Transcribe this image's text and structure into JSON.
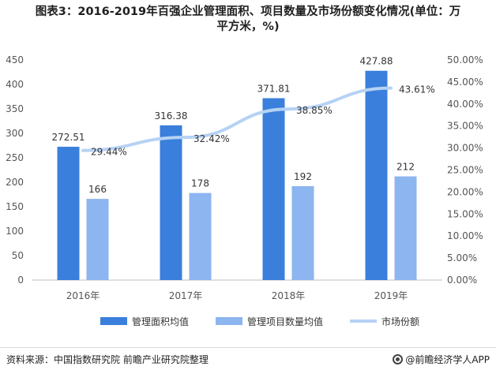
{
  "title": {
    "line1": "图表3：2016-2019年百强企业管理面积、项目数量及市场份额变化情况(单位：万",
    "line2": "平方米，%)"
  },
  "chart_data": {
    "type": "bar",
    "categories": [
      "2016年",
      "2017年",
      "2018年",
      "2019年"
    ],
    "series": [
      {
        "name": "管理面积均值",
        "kind": "bar",
        "axis": "left",
        "color": "#3a7fdc",
        "values": [
          272.51,
          316.38,
          371.81,
          427.88
        ]
      },
      {
        "name": "管理项目数量均值",
        "kind": "bar",
        "axis": "left",
        "color": "#8db5ef",
        "values": [
          166,
          178,
          192,
          212
        ]
      },
      {
        "name": "市场份额",
        "kind": "line",
        "axis": "right",
        "color": "#b6d2f4",
        "values": [
          29.44,
          32.42,
          38.85,
          43.61
        ],
        "labels": [
          "29.44%",
          "32.42%",
          "38.85%",
          "43.61%"
        ]
      }
    ],
    "bar_labels": [
      [
        "272.51",
        "316.38",
        "371.81",
        "427.88"
      ],
      [
        "166",
        "178",
        "192",
        "212"
      ]
    ],
    "yleft": {
      "min": 0,
      "max": 450,
      "ticks": [
        "0",
        "50",
        "100",
        "150",
        "200",
        "250",
        "300",
        "350",
        "400",
        "450"
      ]
    },
    "yright": {
      "min": 0,
      "max": 50,
      "ticks": [
        "0.00%",
        "5.00%",
        "10.00%",
        "15.00%",
        "20.00%",
        "25.00%",
        "30.00%",
        "35.00%",
        "40.00%",
        "45.00%",
        "50.00%"
      ]
    },
    "grid": false,
    "legend": "bottom"
  },
  "footer": {
    "source": "资料来源：中国指数研究院  前瞻产业研究院整理",
    "brand": "@前瞻经济学人APP"
  }
}
